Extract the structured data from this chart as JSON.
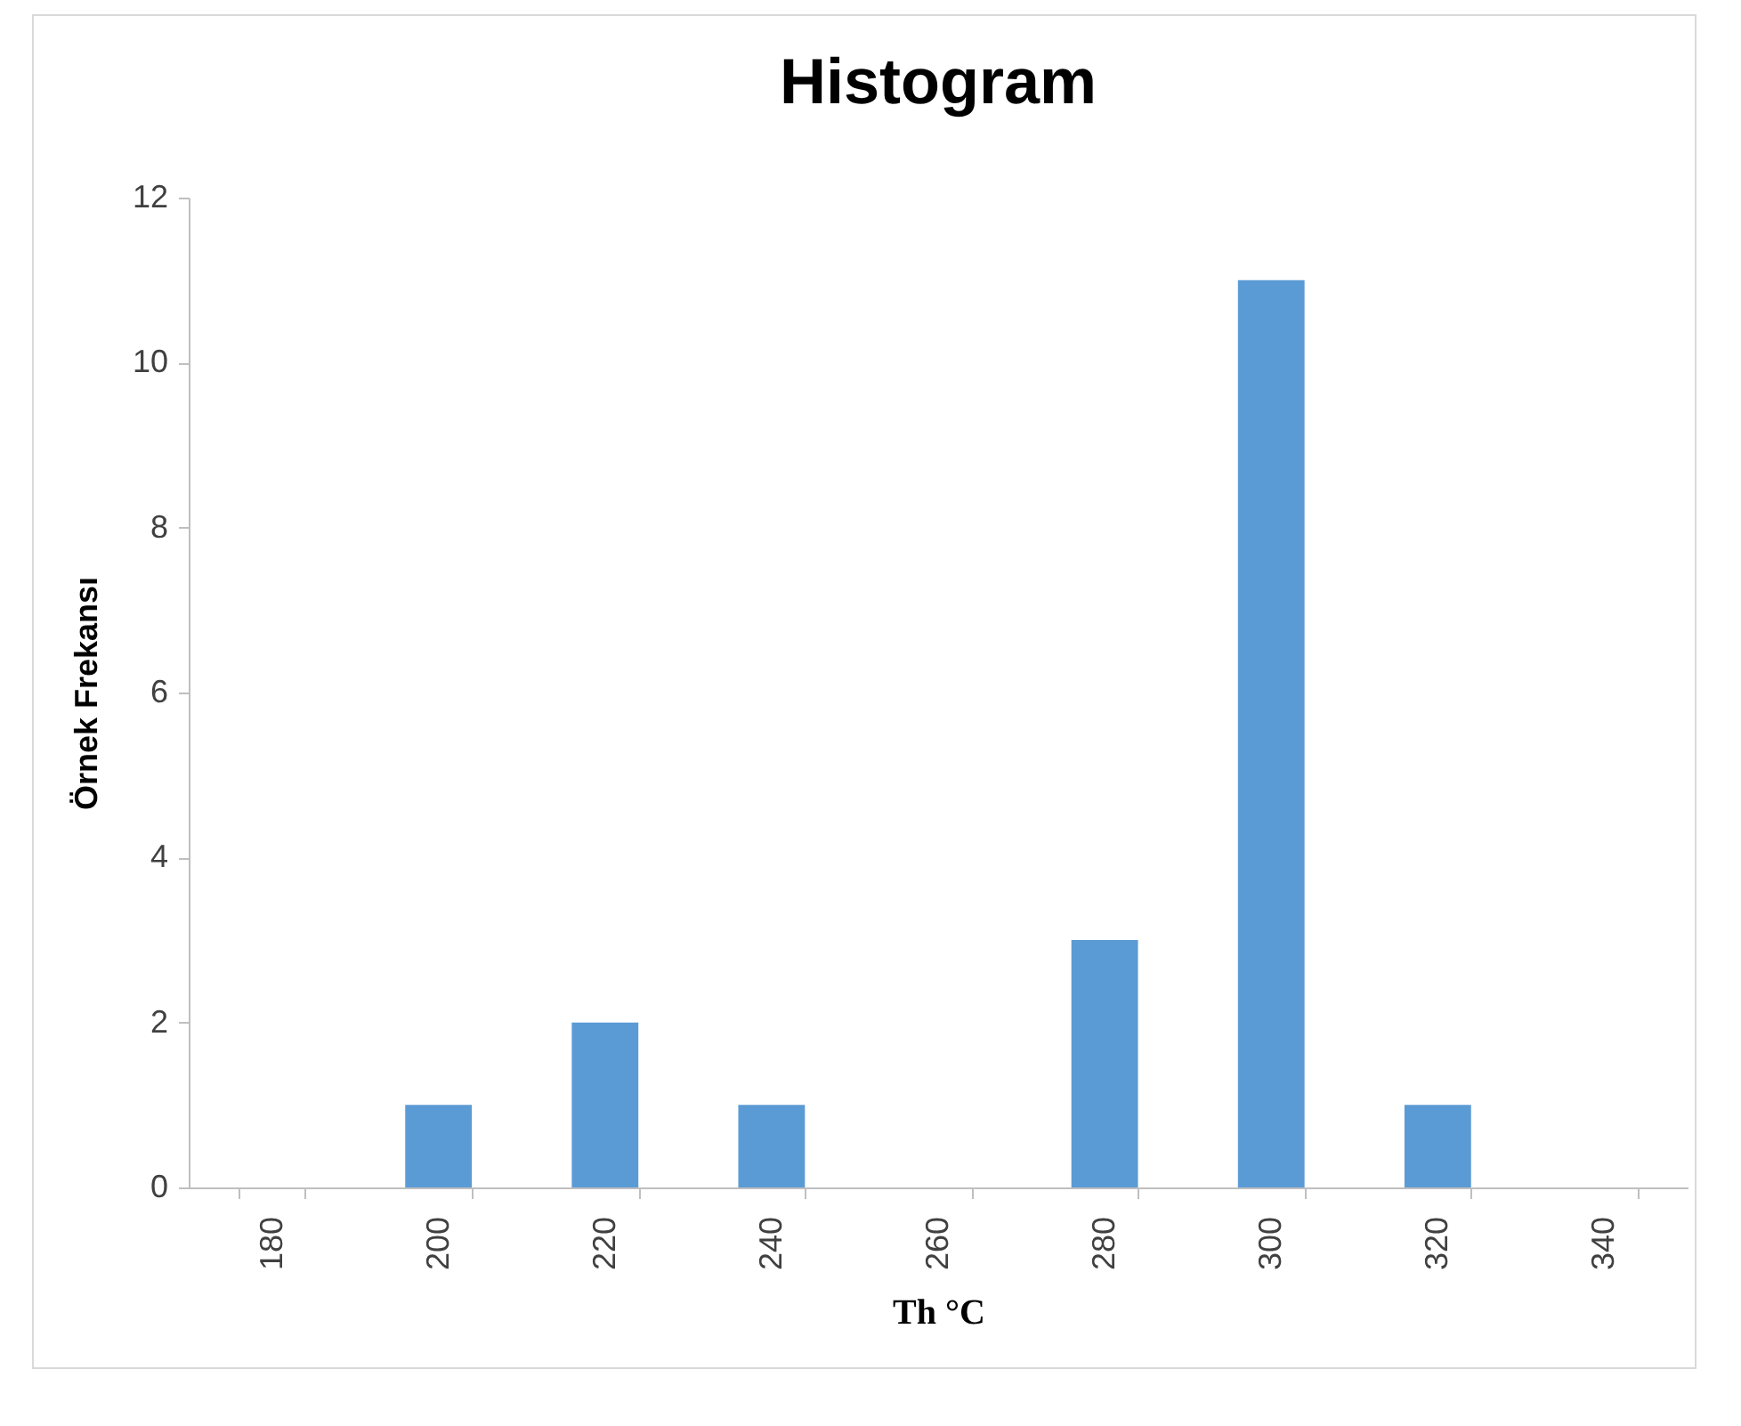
{
  "chart_data": {
    "type": "bar",
    "title": "Histogram",
    "xlabel": "Th °C",
    "ylabel": "Örnek Frekansı",
    "categories": [
      "180",
      "200",
      "220",
      "240",
      "260",
      "280",
      "300",
      "320",
      "340"
    ],
    "series": [
      {
        "color": "#5b9bd5",
        "values": [
          0,
          1,
          2,
          1,
          0,
          3,
          11,
          1,
          0
        ]
      }
    ],
    "ylim": [
      0,
      12
    ],
    "yticks": [
      0,
      2,
      4,
      6,
      8,
      10,
      12
    ],
    "grid": false,
    "legend": false
  }
}
